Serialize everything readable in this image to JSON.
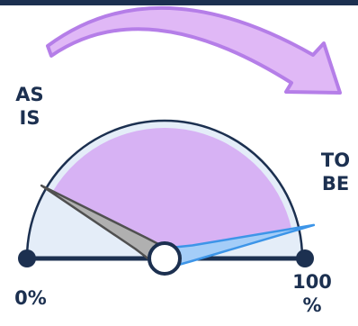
{
  "labels": {
    "as_is": "AS IS",
    "to_be": "TO BE",
    "min": "0%",
    "max": "100 %"
  },
  "gauge": {
    "as_is_level": 0.17,
    "to_be_level": 0.93,
    "direction": "clockwise"
  },
  "colors": {
    "top_bar": "#1c3050",
    "baseline": "#1c3050",
    "outer_fill": "#e4edf8",
    "outer_stroke": "#1c3050",
    "progress_fill": "#d7b2f4",
    "as_is_needle_fill": "#b0b0b0",
    "as_is_needle_stroke": "#505050",
    "to_be_needle_fill": "#a4cdf8",
    "to_be_needle_stroke": "#3d95e8",
    "arrow_fill": "#e0b8f6",
    "arrow_stroke": "#b57ee8",
    "hub_fill": "#ffffff",
    "hub_stroke": "#1c3050",
    "label_text": "#1c3050"
  },
  "icons": {
    "direction_arrow": "curved-arrow-icon"
  }
}
